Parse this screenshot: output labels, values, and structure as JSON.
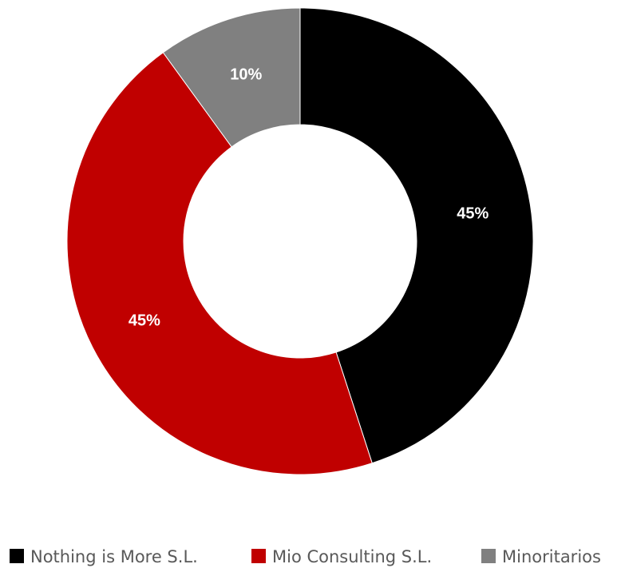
{
  "chart_data": {
    "type": "pie",
    "variant": "donut",
    "title": "",
    "slices": [
      {
        "name": "Nothing is More S.L.",
        "value": 45,
        "label": "45%",
        "color": "#000000"
      },
      {
        "name": "Mio Consulting S.L.",
        "value": 45,
        "label": "45%",
        "color": "#c00000"
      },
      {
        "name": "Minoritarios",
        "value": 10,
        "label": "10%",
        "color": "#808080"
      }
    ],
    "legend": {
      "position": "bottom",
      "entries": [
        "Nothing is More S.L.",
        "Mio Consulting S.L.",
        "Minoritarios"
      ]
    }
  }
}
